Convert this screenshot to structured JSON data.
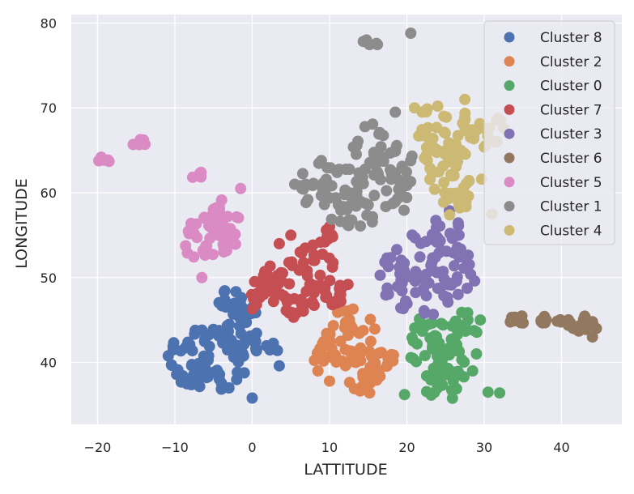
{
  "chart_data": {
    "type": "scatter",
    "title": "",
    "xlabel": "LATTITUDE",
    "ylabel": "LONGITUDE",
    "xlim": [
      -23.4,
      47.8
    ],
    "ylim": [
      32.7,
      81.0
    ],
    "xticks": [
      -20,
      -10,
      0,
      10,
      20,
      30,
      40
    ],
    "yticks": [
      40,
      50,
      60,
      70,
      80
    ],
    "grid": true,
    "legend_position": "top-right",
    "series": [
      {
        "name": "Cluster 8",
        "color": "#4c72b0",
        "clusters": [
          {
            "cx": -5.5,
            "cy": 40.5,
            "rx": 5.5,
            "ry": 3.8,
            "n": 70
          },
          {
            "cx": -1.5,
            "cy": 44.0,
            "rx": 2.5,
            "ry": 3.5,
            "n": 30
          },
          {
            "cx": 1.5,
            "cy": 42.0,
            "rx": 2.0,
            "ry": 1.5,
            "n": 10
          },
          {
            "cx": -3.0,
            "cy": 47.5,
            "rx": 2.0,
            "ry": 1.0,
            "n": 10
          }
        ],
        "points": [
          [
            0.0,
            35.8
          ],
          [
            -3.0,
            37.0
          ],
          [
            3.5,
            39.6
          ]
        ]
      },
      {
        "name": "Cluster 2",
        "color": "#dd8452",
        "clusters": [
          {
            "cx": 12.5,
            "cy": 43.0,
            "rx": 3.5,
            "ry": 3.5,
            "n": 40
          },
          {
            "cx": 16.0,
            "cy": 40.5,
            "rx": 2.5,
            "ry": 2.5,
            "n": 20
          },
          {
            "cx": 14.5,
            "cy": 37.5,
            "rx": 2.0,
            "ry": 1.5,
            "n": 12
          },
          {
            "cx": 9.0,
            "cy": 40.5,
            "rx": 1.0,
            "ry": 2.0,
            "n": 8
          }
        ],
        "points": [
          [
            8.5,
            39.0
          ],
          [
            10.0,
            37.8
          ]
        ]
      },
      {
        "name": "Cluster 0",
        "color": "#55a868",
        "clusters": [
          {
            "cx": 24.0,
            "cy": 42.0,
            "rx": 4.0,
            "ry": 4.0,
            "n": 50
          },
          {
            "cx": 25.0,
            "cy": 37.5,
            "rx": 3.0,
            "ry": 2.0,
            "n": 20
          },
          {
            "cx": 27.5,
            "cy": 44.5,
            "rx": 2.0,
            "ry": 1.5,
            "n": 10
          }
        ],
        "points": [
          [
            19.7,
            36.2
          ],
          [
            29.0,
            41.0
          ],
          [
            29.5,
            45.0
          ],
          [
            30.5,
            36.5
          ],
          [
            32.0,
            36.4
          ],
          [
            28.5,
            39.0
          ]
        ]
      },
      {
        "name": "Cluster 7",
        "color": "#c44e52",
        "clusters": [
          {
            "cx": 7.0,
            "cy": 49.5,
            "rx": 5.5,
            "ry": 4.5,
            "n": 70
          },
          {
            "cx": 2.0,
            "cy": 48.0,
            "rx": 2.5,
            "ry": 3.0,
            "n": 20
          },
          {
            "cx": 9.0,
            "cy": 54.5,
            "rx": 1.5,
            "ry": 1.5,
            "n": 8
          }
        ],
        "points": [
          [
            3.5,
            54.0
          ],
          [
            5.0,
            55.0
          ],
          [
            10.0,
            56.0
          ]
        ]
      },
      {
        "name": "Cluster 3",
        "color": "#8172b3",
        "clusters": [
          {
            "cx": 22.5,
            "cy": 50.5,
            "rx": 6.5,
            "ry": 5.0,
            "n": 80
          },
          {
            "cx": 25.0,
            "cy": 55.5,
            "rx": 2.0,
            "ry": 2.5,
            "n": 15
          }
        ],
        "points": []
      },
      {
        "name": "Cluster 6",
        "color": "#937860",
        "clusters": [
          {
            "cx": 42.5,
            "cy": 44.5,
            "rx": 2.0,
            "ry": 1.0,
            "n": 15
          },
          {
            "cx": 38.5,
            "cy": 45.0,
            "rx": 1.8,
            "ry": 0.5,
            "n": 10
          },
          {
            "cx": 34.5,
            "cy": 45.0,
            "rx": 1.5,
            "ry": 0.5,
            "n": 8
          }
        ],
        "points": [
          [
            44.0,
            43.0
          ],
          [
            44.5,
            44.0
          ]
        ]
      },
      {
        "name": "Cluster 5",
        "color": "#da8bc3",
        "clusters": [
          {
            "cx": -5.5,
            "cy": 54.5,
            "rx": 3.5,
            "ry": 3.0,
            "n": 40
          },
          {
            "cx": -3.5,
            "cy": 57.5,
            "rx": 2.0,
            "ry": 2.0,
            "n": 12
          },
          {
            "cx": -7.0,
            "cy": 62.0,
            "rx": 0.8,
            "ry": 0.5,
            "n": 5
          },
          {
            "cx": -15.0,
            "cy": 66.0,
            "rx": 1.5,
            "ry": 0.6,
            "n": 8
          },
          {
            "cx": -19.5,
            "cy": 63.8,
            "rx": 1.2,
            "ry": 0.4,
            "n": 6
          }
        ],
        "points": [
          [
            -1.5,
            60.5
          ],
          [
            -6.5,
            50.0
          ]
        ]
      },
      {
        "name": "Cluster 1",
        "color": "#8c8c8c",
        "clusters": [
          {
            "cx": 10.0,
            "cy": 61.0,
            "rx": 4.5,
            "ry": 3.0,
            "n": 35
          },
          {
            "cx": 15.5,
            "cy": 64.0,
            "rx": 3.5,
            "ry": 4.5,
            "n": 35
          },
          {
            "cx": 13.0,
            "cy": 57.5,
            "rx": 3.0,
            "ry": 2.5,
            "n": 20
          },
          {
            "cx": 19.0,
            "cy": 61.5,
            "rx": 2.5,
            "ry": 4.5,
            "n": 20
          },
          {
            "cx": 15.5,
            "cy": 77.8,
            "rx": 1.5,
            "ry": 0.4,
            "n": 6
          }
        ],
        "points": [
          [
            5.5,
            61.0
          ],
          [
            18.5,
            69.5
          ],
          [
            20.5,
            78.8
          ]
        ]
      },
      {
        "name": "Cluster 4",
        "color": "#ccb974",
        "clusters": [
          {
            "cx": 25.0,
            "cy": 67.5,
            "rx": 4.5,
            "ry": 3.0,
            "n": 40
          },
          {
            "cx": 25.5,
            "cy": 62.0,
            "rx": 4.5,
            "ry": 3.5,
            "n": 35
          },
          {
            "cx": 30.0,
            "cy": 67.0,
            "rx": 3.0,
            "ry": 2.5,
            "n": 15
          },
          {
            "cx": 27.0,
            "cy": 58.5,
            "rx": 2.5,
            "ry": 1.5,
            "n": 10
          }
        ],
        "points": [
          [
            21.0,
            70.0
          ],
          [
            27.5,
            71.0
          ],
          [
            31.0,
            57.5
          ]
        ]
      }
    ]
  }
}
